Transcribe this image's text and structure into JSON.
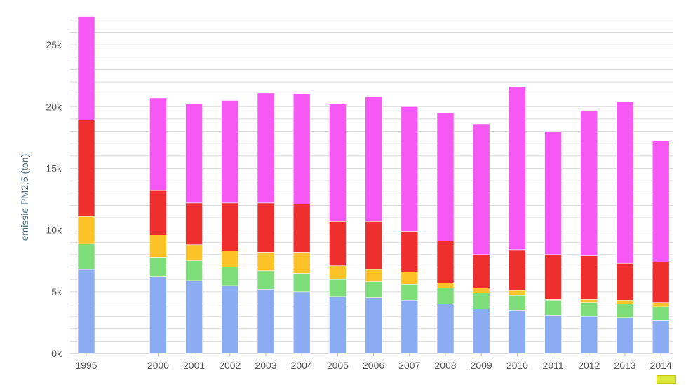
{
  "chart_data": {
    "type": "bar",
    "stacked": true,
    "ylabel": "emissie PM2,5 (ton)",
    "ylim": [
      0,
      27500
    ],
    "y_ticks": [
      0,
      5000,
      10000,
      15000,
      20000,
      25000
    ],
    "y_tick_labels": [
      "0k",
      "5k",
      "10k",
      "15k",
      "20k",
      "25k"
    ],
    "grid": true,
    "categories": [
      "1995",
      "2000",
      "2001",
      "2002",
      "2003",
      "2004",
      "2005",
      "2006",
      "2007",
      "2008",
      "2009",
      "2010",
      "2011",
      "2012",
      "2013",
      "2014"
    ],
    "positions": [
      0,
      2,
      3,
      4,
      5,
      6,
      7,
      8,
      9,
      10,
      11,
      12,
      13,
      14,
      15,
      16
    ],
    "series": [
      {
        "color": "#8bacf2",
        "values": [
          6800,
          6200,
          5900,
          5500,
          5200,
          5000,
          4600,
          4500,
          4300,
          4000,
          3600,
          3500,
          3100,
          3000,
          2900,
          2700
        ]
      },
      {
        "color": "#7ede7a",
        "values": [
          2100,
          1600,
          1600,
          1500,
          1500,
          1500,
          1400,
          1300,
          1300,
          1300,
          1300,
          1200,
          1200,
          1100,
          1100,
          1100
        ]
      },
      {
        "color": "#fcc228",
        "values": [
          2200,
          1800,
          1300,
          1300,
          1500,
          1700,
          1100,
          1000,
          1000,
          400,
          400,
          400,
          100,
          300,
          300,
          300
        ]
      },
      {
        "color": "#ef2e2e",
        "values": [
          7800,
          3600,
          3400,
          3900,
          4000,
          3900,
          3600,
          3900,
          3300,
          3400,
          2700,
          3300,
          3600,
          3500,
          3000,
          3300
        ]
      },
      {
        "color": "#f659f3",
        "values": [
          8400,
          7500,
          8000,
          8300,
          8900,
          8900,
          9500,
          10100,
          10100,
          10400,
          10600,
          13200,
          10000,
          11800,
          13100,
          9800
        ]
      }
    ]
  }
}
